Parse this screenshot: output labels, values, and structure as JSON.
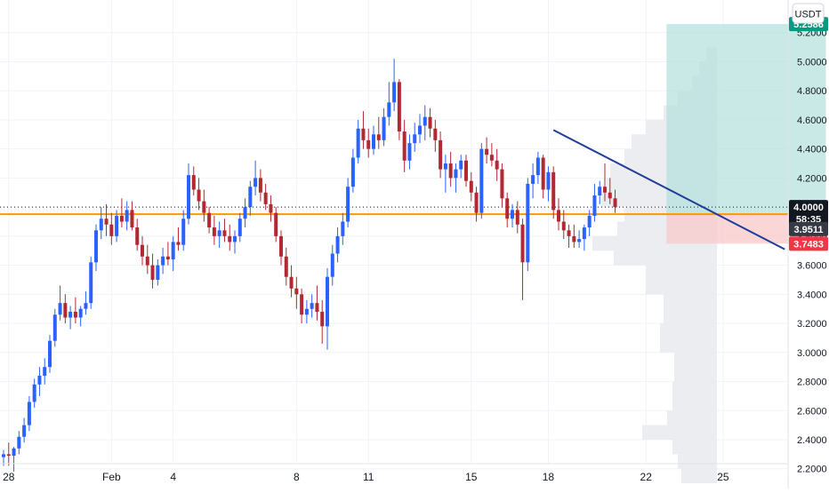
{
  "currency_button": "USDT",
  "chart_data": {
    "type": "candlestick",
    "title": "",
    "quote_currency": "USDT",
    "y_range": [
      2.07,
      5.4
    ],
    "y_ticks": [
      "2.2000",
      "2.4000",
      "2.6000",
      "2.8000",
      "3.0000",
      "3.2000",
      "3.4000",
      "3.6000",
      "3.8000",
      "4.0000",
      "4.2000",
      "4.4000",
      "4.6000",
      "4.8000",
      "5.0000",
      "5.2000"
    ],
    "x_ticks": [
      {
        "label": "28",
        "i": 1
      },
      {
        "label": "Feb",
        "i": 21
      },
      {
        "label": "4",
        "i": 33
      },
      {
        "label": "8",
        "i": 57
      },
      {
        "label": "11",
        "i": 71
      },
      {
        "label": "15",
        "i": 91
      },
      {
        "label": "18",
        "i": 106
      },
      {
        "label": "22",
        "i": 125
      },
      {
        "label": "25",
        "i": 140
      }
    ],
    "candle_x_range": [
      0,
      144
    ],
    "candles": [
      [
        2.28,
        2.33,
        2.22,
        2.3
      ],
      [
        2.3,
        2.38,
        2.22,
        2.29
      ],
      [
        2.29,
        2.35,
        2.18,
        2.34
      ],
      [
        2.34,
        2.46,
        2.3,
        2.42
      ],
      [
        2.42,
        2.55,
        2.38,
        2.5
      ],
      [
        2.5,
        2.7,
        2.46,
        2.66
      ],
      [
        2.66,
        2.82,
        2.62,
        2.78
      ],
      [
        2.78,
        2.9,
        2.7,
        2.84
      ],
      [
        2.84,
        2.96,
        2.78,
        2.9
      ],
      [
        2.9,
        3.12,
        2.86,
        3.08
      ],
      [
        3.08,
        3.3,
        3.04,
        3.26
      ],
      [
        3.26,
        3.46,
        3.22,
        3.34
      ],
      [
        3.34,
        3.4,
        3.2,
        3.24
      ],
      [
        3.24,
        3.32,
        3.16,
        3.28
      ],
      [
        3.28,
        3.38,
        3.2,
        3.24
      ],
      [
        3.24,
        3.32,
        3.18,
        3.3
      ],
      [
        3.3,
        3.42,
        3.26,
        3.34
      ],
      [
        3.34,
        3.66,
        3.3,
        3.62
      ],
      [
        3.62,
        3.88,
        3.56,
        3.84
      ],
      [
        3.84,
        4.0,
        3.78,
        3.92
      ],
      [
        3.92,
        4.02,
        3.8,
        3.88
      ],
      [
        3.88,
        3.96,
        3.74,
        3.8
      ],
      [
        3.8,
        3.98,
        3.76,
        3.94
      ],
      [
        3.94,
        4.06,
        3.86,
        3.9
      ],
      [
        3.9,
        4.04,
        3.84,
        3.98
      ],
      [
        3.98,
        4.04,
        3.84,
        3.86
      ],
      [
        3.86,
        3.92,
        3.7,
        3.74
      ],
      [
        3.74,
        3.8,
        3.6,
        3.66
      ],
      [
        3.66,
        3.74,
        3.54,
        3.6
      ],
      [
        3.6,
        3.68,
        3.44,
        3.5
      ],
      [
        3.5,
        3.64,
        3.46,
        3.6
      ],
      [
        3.6,
        3.72,
        3.54,
        3.66
      ],
      [
        3.66,
        3.76,
        3.6,
        3.64
      ],
      [
        3.64,
        3.8,
        3.56,
        3.76
      ],
      [
        3.76,
        3.86,
        3.7,
        3.74
      ],
      [
        3.74,
        3.98,
        3.7,
        3.92
      ],
      [
        3.92,
        4.3,
        3.88,
        4.22
      ],
      [
        4.22,
        4.28,
        4.08,
        4.12
      ],
      [
        4.12,
        4.2,
        3.98,
        4.04
      ],
      [
        4.04,
        4.12,
        3.9,
        3.96
      ],
      [
        3.96,
        4.0,
        3.82,
        3.86
      ],
      [
        3.86,
        3.94,
        3.74,
        3.8
      ],
      [
        3.8,
        3.9,
        3.72,
        3.84
      ],
      [
        3.84,
        3.92,
        3.76,
        3.8
      ],
      [
        3.8,
        3.88,
        3.7,
        3.76
      ],
      [
        3.76,
        3.84,
        3.68,
        3.8
      ],
      [
        3.8,
        3.96,
        3.76,
        3.92
      ],
      [
        3.92,
        4.06,
        3.86,
        4.0
      ],
      [
        4.0,
        4.18,
        3.94,
        4.14
      ],
      [
        4.14,
        4.32,
        4.08,
        4.2
      ],
      [
        4.2,
        4.26,
        4.04,
        4.1
      ],
      [
        4.1,
        4.16,
        3.98,
        4.02
      ],
      [
        4.02,
        4.08,
        3.9,
        3.96
      ],
      [
        3.96,
        4.0,
        3.76,
        3.8
      ],
      [
        3.8,
        3.84,
        3.6,
        3.66
      ],
      [
        3.66,
        3.72,
        3.46,
        3.52
      ],
      [
        3.52,
        3.6,
        3.38,
        3.44
      ],
      [
        3.44,
        3.52,
        3.3,
        3.4
      ],
      [
        3.4,
        3.44,
        3.2,
        3.26
      ],
      [
        3.26,
        3.36,
        3.2,
        3.3
      ],
      [
        3.3,
        3.4,
        3.24,
        3.34
      ],
      [
        3.34,
        3.46,
        3.22,
        3.28
      ],
      [
        3.28,
        3.36,
        3.06,
        3.18
      ],
      [
        3.18,
        3.58,
        3.02,
        3.52
      ],
      [
        3.52,
        3.74,
        3.46,
        3.68
      ],
      [
        3.68,
        3.86,
        3.62,
        3.8
      ],
      [
        3.8,
        3.96,
        3.74,
        3.9
      ],
      [
        3.9,
        4.2,
        3.86,
        4.14
      ],
      [
        4.14,
        4.4,
        4.1,
        4.34
      ],
      [
        4.34,
        4.6,
        4.3,
        4.54
      ],
      [
        4.54,
        4.66,
        4.4,
        4.46
      ],
      [
        4.46,
        4.54,
        4.34,
        4.4
      ],
      [
        4.4,
        4.56,
        4.36,
        4.5
      ],
      [
        4.5,
        4.62,
        4.4,
        4.46
      ],
      [
        4.46,
        4.68,
        4.42,
        4.62
      ],
      [
        4.62,
        4.86,
        4.56,
        4.72
      ],
      [
        4.72,
        5.02,
        4.66,
        4.86
      ],
      [
        4.86,
        4.88,
        4.46,
        4.52
      ],
      [
        4.52,
        4.6,
        4.24,
        4.32
      ],
      [
        4.32,
        4.5,
        4.26,
        4.44
      ],
      [
        4.44,
        4.58,
        4.38,
        4.5
      ],
      [
        4.5,
        4.64,
        4.44,
        4.56
      ],
      [
        4.56,
        4.7,
        4.46,
        4.62
      ],
      [
        4.62,
        4.68,
        4.48,
        4.54
      ],
      [
        4.54,
        4.6,
        4.38,
        4.46
      ],
      [
        4.46,
        4.52,
        4.2,
        4.26
      ],
      [
        4.26,
        4.36,
        4.1,
        4.3
      ],
      [
        4.3,
        4.38,
        4.14,
        4.2
      ],
      [
        4.2,
        4.3,
        4.1,
        4.26
      ],
      [
        4.26,
        4.36,
        4.2,
        4.32
      ],
      [
        4.32,
        4.36,
        4.14,
        4.18
      ],
      [
        4.18,
        4.24,
        4.04,
        4.1
      ],
      [
        4.1,
        4.14,
        3.9,
        3.96
      ],
      [
        3.96,
        4.44,
        3.92,
        4.4
      ],
      [
        4.4,
        4.48,
        4.3,
        4.36
      ],
      [
        4.36,
        4.44,
        4.28,
        4.32
      ],
      [
        4.32,
        4.4,
        4.18,
        4.26
      ],
      [
        4.26,
        4.3,
        4.0,
        4.06
      ],
      [
        4.06,
        4.1,
        3.86,
        3.92
      ],
      [
        3.92,
        4.02,
        3.86,
        3.98
      ],
      [
        3.98,
        4.04,
        3.82,
        3.88
      ],
      [
        3.88,
        3.92,
        3.36,
        3.62
      ],
      [
        3.62,
        4.2,
        3.56,
        4.16
      ],
      [
        4.16,
        4.3,
        4.06,
        4.22
      ],
      [
        4.22,
        4.38,
        4.16,
        4.34
      ],
      [
        4.34,
        4.36,
        4.06,
        4.12
      ],
      [
        4.12,
        4.28,
        4.04,
        4.24
      ],
      [
        4.24,
        4.28,
        3.92,
        3.98
      ],
      [
        3.98,
        4.06,
        3.84,
        3.9
      ],
      [
        3.9,
        3.98,
        3.78,
        3.84
      ],
      [
        3.84,
        3.88,
        3.72,
        3.8
      ],
      [
        3.8,
        3.88,
        3.72,
        3.76
      ],
      [
        3.76,
        3.84,
        3.72,
        3.78
      ],
      [
        3.78,
        3.88,
        3.7,
        3.86
      ],
      [
        3.86,
        3.98,
        3.8,
        3.94
      ],
      [
        3.94,
        4.16,
        3.9,
        4.08
      ],
      [
        4.08,
        4.18,
        4.02,
        4.14
      ],
      [
        4.14,
        4.3,
        4.04,
        4.1
      ],
      [
        4.1,
        4.2,
        4.02,
        4.06
      ],
      [
        4.06,
        4.12,
        3.96,
        4.0
      ]
    ],
    "trendline": {
      "from": {
        "i": 107,
        "y": 4.53
      },
      "to": {
        "i": 152,
        "y": 3.71
      }
    },
    "horizontal_levels": [
      {
        "y": 3.9511,
        "color": "#ff9800"
      }
    ],
    "current_price_line": {
      "y": 4.0
    },
    "position": {
      "start_i": 129,
      "end_i": 160,
      "entry": 3.95,
      "target": 5.2586,
      "stop": 3.7483,
      "profit_fill": "#b2dfdb",
      "loss_fill": "#f8c8c8"
    },
    "volume_profile": [
      [
        2.1,
        0.2
      ],
      [
        2.2,
        0.22
      ],
      [
        2.3,
        0.25
      ],
      [
        2.4,
        0.42
      ],
      [
        2.5,
        0.28
      ],
      [
        2.6,
        0.25
      ],
      [
        2.8,
        0.24
      ],
      [
        3.0,
        0.32
      ],
      [
        3.2,
        0.3
      ],
      [
        3.4,
        0.4
      ],
      [
        3.6,
        0.58
      ],
      [
        3.7,
        0.7
      ],
      [
        3.8,
        0.56
      ],
      [
        3.9,
        0.52
      ],
      [
        4.0,
        0.65
      ],
      [
        4.1,
        0.62
      ],
      [
        4.2,
        0.6
      ],
      [
        4.3,
        0.52
      ],
      [
        4.4,
        0.48
      ],
      [
        4.5,
        0.4
      ],
      [
        4.6,
        0.3
      ],
      [
        4.7,
        0.22
      ],
      [
        4.8,
        0.14
      ],
      [
        4.9,
        0.1
      ],
      [
        5.0,
        0.06
      ]
    ],
    "price_tags": [
      {
        "label": "5.2586",
        "y": 5.2586,
        "bg": "#089981",
        "fg": "#ffffff"
      },
      {
        "label": "4.0000",
        "y": 4.0,
        "bg": "#131722",
        "fg": "#ffffff"
      },
      {
        "label": "58:35",
        "y": 3.9175,
        "bg": "#131722",
        "fg": "#ffffff"
      },
      {
        "label": "3.9511",
        "y": 3.8485,
        "bg": "#363a45",
        "fg": "#ffffff"
      },
      {
        "label": "3.7483",
        "y": 3.7483,
        "bg": "#f23645",
        "fg": "#ffffff"
      }
    ],
    "colors": {
      "up": "#2962ff",
      "down": "#b22833",
      "trendline": "#1f3d99",
      "grid": "#f0f3fa"
    }
  }
}
